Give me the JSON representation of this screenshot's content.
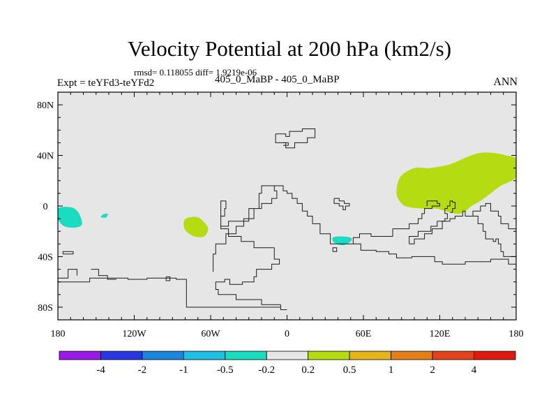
{
  "chart_data": {
    "type": "heatmap",
    "title": "Velocity Potential at 200 hPa (km2/s)",
    "stats_line": "rmsd= 0.118055 diff= 1.9219e-06",
    "left_label": "Expt = teYFd3-teYFd2",
    "center_label": "405_0_MaBP - 405_0_MaBP",
    "right_label": "ANN",
    "xlabel": "",
    "ylabel": "",
    "xlim": [
      -180,
      180
    ],
    "ylim": [
      -90,
      90
    ],
    "x_ticks": [
      {
        "value": -180,
        "label": "180"
      },
      {
        "value": -120,
        "label": "120W"
      },
      {
        "value": -60,
        "label": "60W"
      },
      {
        "value": 0,
        "label": "0"
      },
      {
        "value": 60,
        "label": "60E"
      },
      {
        "value": 120,
        "label": "120E"
      },
      {
        "value": 180,
        "label": "180"
      }
    ],
    "y_ticks": [
      {
        "value": 80,
        "label": "80N"
      },
      {
        "value": 40,
        "label": "40N"
      },
      {
        "value": 0,
        "label": "0"
      },
      {
        "value": -40,
        "label": "40S"
      },
      {
        "value": -80,
        "label": "80S"
      }
    ],
    "background_color": "#e6e6e6",
    "colorbar": {
      "levels": [
        "-4",
        "-2",
        "-1",
        "-0.5",
        "-0.2",
        "0.2",
        "0.5",
        "1",
        "2",
        "4"
      ],
      "colors": [
        "#9a1be6",
        "#2a37e0",
        "#1d86dc",
        "#1fc0e3",
        "#19dcc0",
        "#e6e6e6",
        "#b5dc12",
        "#e3b51a",
        "#e3801a",
        "#e1441d",
        "#e11a10"
      ]
    },
    "anomalies": [
      {
        "name": "positive-anomaly-asia-pacific",
        "level": 0.5,
        "color": "#b5dc12",
        "outline": [
          [
            89,
            23
          ],
          [
            100,
            30
          ],
          [
            112,
            30
          ],
          [
            128,
            33
          ],
          [
            142,
            39
          ],
          [
            152,
            42
          ],
          [
            162,
            42
          ],
          [
            172,
            40
          ],
          [
            180,
            37
          ],
          [
            180,
            23
          ],
          [
            168,
            16
          ],
          [
            160,
            10
          ],
          [
            152,
            4
          ],
          [
            145,
            0
          ],
          [
            137,
            -6
          ],
          [
            128,
            -5
          ],
          [
            117,
            -2
          ],
          [
            106,
            -2
          ],
          [
            96,
            -1
          ],
          [
            90,
            2
          ],
          [
            86,
            10
          ]
        ]
      },
      {
        "name": "positive-anomaly-south-atlantic",
        "level": 0.5,
        "color": "#b5dc12",
        "outline": [
          [
            -77,
            -9
          ],
          [
            -70,
            -9
          ],
          [
            -65,
            -13
          ],
          [
            -62,
            -18
          ],
          [
            -65,
            -24
          ],
          [
            -73,
            -24
          ],
          [
            -80,
            -19
          ],
          [
            -81,
            -12
          ]
        ]
      },
      {
        "name": "negative-anomaly-east-pacific",
        "level": -0.2,
        "color": "#19dcc0",
        "outline": [
          [
            -180,
            -2
          ],
          [
            -170,
            -1
          ],
          [
            -164,
            -5
          ],
          [
            -161,
            -14
          ],
          [
            -166,
            -17
          ],
          [
            -175,
            -16
          ],
          [
            -180,
            -10
          ]
        ]
      },
      {
        "name": "negative-anomaly-east-pacific-small",
        "level": -0.2,
        "color": "#19dcc0",
        "outline": [
          [
            -145,
            -7
          ],
          [
            -141,
            -6
          ],
          [
            -142,
            -9
          ],
          [
            -146,
            -9
          ]
        ]
      },
      {
        "name": "negative-anomaly-indian-ocean",
        "level": -0.2,
        "color": "#19dcc0",
        "outline": [
          [
            36,
            -25
          ],
          [
            42,
            -24
          ],
          [
            50,
            -25
          ],
          [
            50,
            -28
          ],
          [
            44,
            -31
          ],
          [
            37,
            -29
          ]
        ]
      }
    ],
    "coastlines": [
      [
        [
          -180,
          -60
        ],
        [
          -162,
          -60
        ],
        [
          -155,
          -57
        ],
        [
          -145,
          -57
        ],
        [
          -125,
          -58
        ],
        [
          -110,
          -57
        ],
        [
          -97,
          -57
        ],
        [
          -87,
          -58
        ],
        [
          -79,
          -64
        ],
        [
          -79,
          -80
        ],
        [
          -60,
          -80
        ],
        [
          -50,
          -80
        ],
        [
          -25,
          -80
        ],
        [
          -5,
          -78
        ],
        [
          -5,
          -82
        ],
        [
          0,
          -82
        ]
      ],
      [
        [
          -180,
          -57
        ],
        [
          -173,
          -57
        ],
        [
          -172,
          -50
        ],
        [
          -165,
          -50
        ],
        [
          -165,
          -55
        ]
      ],
      [
        [
          -176,
          -38
        ],
        [
          -176,
          -36
        ],
        [
          -168,
          -36
        ],
        [
          -168,
          -38
        ],
        [
          -176,
          -38
        ]
      ],
      [
        [
          -154,
          -50
        ],
        [
          -148,
          -50
        ],
        [
          -148,
          -55
        ],
        [
          -141,
          -55
        ],
        [
          -141,
          -58
        ],
        [
          -134,
          -58
        ]
      ],
      [
        [
          -95,
          -56
        ],
        [
          -92,
          -56
        ],
        [
          -92,
          -59
        ],
        [
          -95,
          -59
        ],
        [
          -95,
          -56
        ]
      ],
      [
        [
          -5,
          -78
        ],
        [
          -20,
          -74
        ],
        [
          -40,
          -70
        ],
        [
          -51,
          -70
        ],
        [
          -54,
          -66
        ],
        [
          -56,
          -60
        ],
        [
          -49,
          -58
        ],
        [
          -45,
          -62
        ],
        [
          -35,
          -60
        ],
        [
          -26,
          -56
        ],
        [
          -24,
          -50
        ],
        [
          -12,
          -46
        ],
        [
          -6,
          -42
        ],
        [
          -10,
          -33
        ]
      ],
      [
        [
          -10,
          -33
        ],
        [
          -26,
          -28
        ],
        [
          -36,
          -24
        ],
        [
          -46,
          -18
        ],
        [
          -52,
          -16
        ],
        [
          -46,
          -12
        ],
        [
          -30,
          -2
        ],
        [
          -22,
          10
        ],
        [
          -20,
          16
        ],
        [
          -14,
          16
        ],
        [
          -10,
          12
        ],
        [
          -8,
          6
        ],
        [
          -12,
          2
        ],
        [
          -20,
          -2
        ],
        [
          -26,
          -10
        ],
        [
          -34,
          -16
        ],
        [
          -40,
          -22
        ],
        [
          -48,
          -30
        ],
        [
          -56,
          -38
        ],
        [
          -58,
          -52
        ]
      ],
      [
        [
          -20,
          16
        ],
        [
          -7,
          16
        ],
        [
          -3,
          12
        ],
        [
          0,
          10
        ],
        [
          4,
          6
        ],
        [
          8,
          2
        ],
        [
          12,
          -4
        ],
        [
          16,
          -8
        ],
        [
          20,
          -14
        ]
      ],
      [
        [
          -52,
          -16
        ],
        [
          -52,
          -8
        ],
        [
          -49,
          -8
        ],
        [
          -49,
          -2
        ],
        [
          -48,
          4
        ],
        [
          -52,
          4
        ],
        [
          -52,
          -16
        ]
      ],
      [
        [
          -9,
          57
        ],
        [
          -3,
          57
        ],
        [
          -1,
          55
        ],
        [
          2,
          55
        ],
        [
          2,
          59
        ],
        [
          8,
          59
        ],
        [
          12,
          61
        ],
        [
          18,
          61
        ],
        [
          22,
          58
        ],
        [
          22,
          54
        ],
        [
          19,
          54
        ],
        [
          16,
          50
        ],
        [
          10,
          50
        ],
        [
          6,
          46
        ],
        [
          0,
          46
        ],
        [
          -1,
          50
        ],
        [
          -9,
          50
        ],
        [
          -9,
          57
        ]
      ],
      [
        [
          -3,
          48
        ],
        [
          1,
          48
        ],
        [
          1,
          50
        ],
        [
          -3,
          50
        ]
      ],
      [
        [
          37,
          6
        ],
        [
          37,
          2
        ],
        [
          41,
          2
        ],
        [
          41,
          0
        ],
        [
          44,
          0
        ],
        [
          44,
          -3
        ],
        [
          46,
          -3
        ],
        [
          46,
          0
        ],
        [
          49,
          0
        ],
        [
          49,
          2
        ],
        [
          45,
          4
        ],
        [
          41,
          6
        ],
        [
          37,
          6
        ]
      ],
      [
        [
          36,
          -36
        ],
        [
          36,
          -33
        ],
        [
          39,
          -33
        ],
        [
          39,
          -36
        ],
        [
          36,
          -36
        ]
      ],
      [
        [
          20,
          -14
        ],
        [
          26,
          -22
        ],
        [
          34,
          -27
        ],
        [
          34,
          -30
        ],
        [
          52,
          -30
        ],
        [
          52,
          -25
        ],
        [
          57,
          -22
        ],
        [
          66,
          -24
        ],
        [
          83,
          -23
        ],
        [
          83,
          -18
        ]
      ],
      [
        [
          52,
          -30
        ],
        [
          58,
          -35
        ],
        [
          70,
          -36
        ],
        [
          80,
          -38
        ],
        [
          86,
          -41
        ],
        [
          98,
          -40
        ],
        [
          110,
          -40
        ],
        [
          116,
          -44
        ],
        [
          122,
          -46
        ],
        [
          128,
          -46
        ],
        [
          140,
          -44
        ],
        [
          152,
          -44
        ],
        [
          160,
          -42
        ],
        [
          166,
          -42
        ],
        [
          174,
          -46
        ],
        [
          180,
          -46
        ]
      ],
      [
        [
          83,
          -18
        ],
        [
          92,
          -18
        ],
        [
          96,
          -14
        ],
        [
          103,
          -10
        ],
        [
          106,
          -6
        ],
        [
          108,
          -2
        ],
        [
          114,
          0
        ],
        [
          120,
          2
        ],
        [
          118,
          4
        ],
        [
          114,
          4
        ],
        [
          110,
          0
        ]
      ],
      [
        [
          96,
          -30
        ],
        [
          96,
          -24
        ],
        [
          103,
          -24
        ],
        [
          103,
          -20
        ],
        [
          110,
          -20
        ],
        [
          113,
          -16
        ],
        [
          118,
          -16
        ],
        [
          118,
          -12
        ]
      ],
      [
        [
          96,
          -30
        ],
        [
          100,
          -30
        ],
        [
          100,
          -26
        ],
        [
          108,
          -26
        ],
        [
          108,
          -22
        ],
        [
          114,
          -22
        ],
        [
          114,
          -18
        ],
        [
          122,
          -18
        ],
        [
          122,
          -12
        ],
        [
          128,
          -10
        ],
        [
          132,
          -8
        ],
        [
          138,
          -4
        ]
      ],
      [
        [
          118,
          -12
        ],
        [
          124,
          -10
        ],
        [
          126,
          -6
        ],
        [
          124,
          -2
        ],
        [
          126,
          0
        ],
        [
          128,
          4
        ],
        [
          130,
          3
        ]
      ],
      [
        [
          128,
          -5
        ],
        [
          130,
          -2
        ],
        [
          132,
          -2
        ],
        [
          132,
          3
        ],
        [
          130,
          4
        ]
      ],
      [
        [
          138,
          -4
        ],
        [
          140,
          -8
        ],
        [
          148,
          -8
        ],
        [
          146,
          -4
        ],
        [
          150,
          -4
        ],
        [
          152,
          0
        ]
      ],
      [
        [
          148,
          -8
        ],
        [
          150,
          -14
        ],
        [
          152,
          -14
        ],
        [
          154,
          -20
        ],
        [
          156,
          -20
        ],
        [
          156,
          -26
        ],
        [
          162,
          -28
        ],
        [
          164,
          -26
        ],
        [
          166,
          -30
        ],
        [
          168,
          -30
        ],
        [
          168,
          -36
        ],
        [
          170,
          -40
        ],
        [
          176,
          -40
        ],
        [
          180,
          -42
        ]
      ],
      [
        [
          152,
          0
        ],
        [
          156,
          2
        ],
        [
          160,
          2
        ],
        [
          160,
          -4
        ],
        [
          164,
          -4
        ],
        [
          166,
          -8
        ],
        [
          168,
          -8
        ],
        [
          168,
          -14
        ],
        [
          172,
          -14
        ],
        [
          174,
          -18
        ],
        [
          178,
          -18
        ],
        [
          180,
          -22
        ]
      ]
    ]
  }
}
